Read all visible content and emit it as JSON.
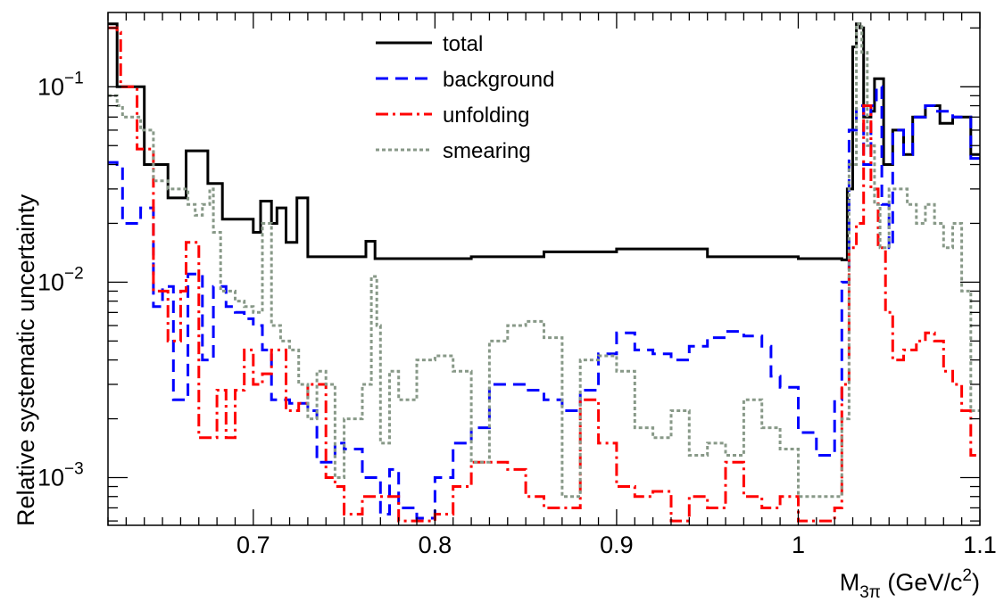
{
  "chart_data": {
    "type": "line",
    "style": "step histogram",
    "xlabel": "M_3π (GeV/c^2)",
    "xlabel_parts": {
      "main": "M",
      "sub": "3π",
      "unit_pre": " (GeV/c",
      "sup": "2",
      "unit_post": ")"
    },
    "ylabel": "Relative systematic uncertainty",
    "xlim": [
      0.62,
      1.1
    ],
    "ylim": [
      0.00057,
      0.24
    ],
    "yscale": "log",
    "grid": false,
    "legend_position": "top-center",
    "x_tick_labels": [
      {
        "value": 0.7,
        "label": "0.7"
      },
      {
        "value": 0.8,
        "label": "0.8"
      },
      {
        "value": 0.9,
        "label": "0.9"
      },
      {
        "value": 1.0,
        "label": "1"
      },
      {
        "value": 1.1,
        "label": "1.1"
      }
    ],
    "y_tick_labels": [
      {
        "value": 0.001,
        "base": "10",
        "exp": "−3"
      },
      {
        "value": 0.01,
        "base": "10",
        "exp": "−2"
      },
      {
        "value": 0.1,
        "base": "10",
        "exp": "−1"
      }
    ],
    "series": [
      {
        "name": "total",
        "color": "#000000",
        "dash": "",
        "points": [
          [
            0.62,
            0.21
          ],
          [
            0.625,
            0.1
          ],
          [
            0.632,
            0.1
          ],
          [
            0.64,
            0.04
          ],
          [
            0.648,
            0.04
          ],
          [
            0.653,
            0.027
          ],
          [
            0.66,
            0.027
          ],
          [
            0.663,
            0.047
          ],
          [
            0.672,
            0.047
          ],
          [
            0.675,
            0.032
          ],
          [
            0.68,
            0.032
          ],
          [
            0.683,
            0.021
          ],
          [
            0.695,
            0.021
          ],
          [
            0.7,
            0.018
          ],
          [
            0.704,
            0.026
          ],
          [
            0.708,
            0.026
          ],
          [
            0.71,
            0.02
          ],
          [
            0.713,
            0.024
          ],
          [
            0.716,
            0.024
          ],
          [
            0.718,
            0.016
          ],
          [
            0.722,
            0.016
          ],
          [
            0.724,
            0.027
          ],
          [
            0.728,
            0.027
          ],
          [
            0.73,
            0.0135
          ],
          [
            0.76,
            0.0135
          ],
          [
            0.762,
            0.0162
          ],
          [
            0.765,
            0.0162
          ],
          [
            0.767,
            0.0132
          ],
          [
            0.82,
            0.0135
          ],
          [
            0.86,
            0.0143
          ],
          [
            0.9,
            0.0148
          ],
          [
            0.95,
            0.0135
          ],
          [
            1.0,
            0.0132
          ],
          [
            1.024,
            0.013
          ],
          [
            1.027,
            0.03
          ],
          [
            1.03,
            0.16
          ],
          [
            1.032,
            0.21
          ],
          [
            1.034,
            0.2
          ],
          [
            1.036,
            0.07
          ],
          [
            1.04,
            0.075
          ],
          [
            1.042,
            0.11
          ],
          [
            1.045,
            0.11
          ],
          [
            1.047,
            0.04
          ],
          [
            1.05,
            0.04
          ],
          [
            1.052,
            0.06
          ],
          [
            1.055,
            0.06
          ],
          [
            1.058,
            0.045
          ],
          [
            1.062,
            0.045
          ],
          [
            1.063,
            0.07
          ],
          [
            1.07,
            0.08
          ],
          [
            1.075,
            0.08
          ],
          [
            1.078,
            0.065
          ],
          [
            1.085,
            0.07
          ],
          [
            1.092,
            0.07
          ],
          [
            1.095,
            0.045
          ],
          [
            1.1,
            0.045
          ]
        ]
      },
      {
        "name": "background",
        "color": "#0000ff",
        "dash": "14,8",
        "points": [
          [
            0.62,
            0.041
          ],
          [
            0.625,
            0.04
          ],
          [
            0.628,
            0.02
          ],
          [
            0.635,
            0.02
          ],
          [
            0.638,
            0.024
          ],
          [
            0.642,
            0.024
          ],
          [
            0.645,
            0.0075
          ],
          [
            0.65,
            0.0095
          ],
          [
            0.653,
            0.0095
          ],
          [
            0.656,
            0.0025
          ],
          [
            0.66,
            0.0025
          ],
          [
            0.664,
            0.011
          ],
          [
            0.668,
            0.011
          ],
          [
            0.672,
            0.004
          ],
          [
            0.678,
            0.0095
          ],
          [
            0.685,
            0.0075
          ],
          [
            0.69,
            0.007
          ],
          [
            0.695,
            0.0065
          ],
          [
            0.7,
            0.006
          ],
          [
            0.705,
            0.0045
          ],
          [
            0.71,
            0.0025
          ],
          [
            0.715,
            0.0025
          ],
          [
            0.72,
            0.0024
          ],
          [
            0.725,
            0.0024
          ],
          [
            0.73,
            0.0022
          ],
          [
            0.735,
            0.0012
          ],
          [
            0.74,
            0.0012
          ],
          [
            0.745,
            0.0015
          ],
          [
            0.75,
            0.0014
          ],
          [
            0.76,
            0.001
          ],
          [
            0.77,
            0.00065
          ],
          [
            0.775,
            0.0011
          ],
          [
            0.78,
            0.0007
          ],
          [
            0.79,
            0.00062
          ],
          [
            0.8,
            0.001
          ],
          [
            0.81,
            0.0015
          ],
          [
            0.82,
            0.0018
          ],
          [
            0.83,
            0.003
          ],
          [
            0.84,
            0.003
          ],
          [
            0.85,
            0.0028
          ],
          [
            0.86,
            0.0025
          ],
          [
            0.87,
            0.0022
          ],
          [
            0.88,
            0.0028
          ],
          [
            0.89,
            0.0043
          ],
          [
            0.9,
            0.0055
          ],
          [
            0.905,
            0.0055
          ],
          [
            0.91,
            0.0045
          ],
          [
            0.92,
            0.0043
          ],
          [
            0.93,
            0.004
          ],
          [
            0.94,
            0.0047
          ],
          [
            0.95,
            0.0052
          ],
          [
            0.96,
            0.0056
          ],
          [
            0.97,
            0.0053
          ],
          [
            0.98,
            0.0047
          ],
          [
            0.985,
            0.0033
          ],
          [
            0.99,
            0.0029
          ],
          [
            1.0,
            0.0017
          ],
          [
            1.01,
            0.0013
          ],
          [
            1.02,
            0.0025
          ],
          [
            1.024,
            0.01
          ],
          [
            1.028,
            0.06
          ],
          [
            1.032,
            0.08
          ],
          [
            1.036,
            0.04
          ],
          [
            1.04,
            0.08
          ],
          [
            1.043,
            0.1
          ],
          [
            1.046,
            0.025
          ],
          [
            1.05,
            0.015
          ],
          [
            1.052,
            0.06
          ],
          [
            1.058,
            0.045
          ],
          [
            1.063,
            0.07
          ],
          [
            1.07,
            0.08
          ],
          [
            1.075,
            0.075
          ],
          [
            1.085,
            0.07
          ],
          [
            1.095,
            0.043
          ],
          [
            1.1,
            0.043
          ]
        ]
      },
      {
        "name": "unfolding",
        "color": "#ff0000",
        "dash": "14,5,3,5",
        "points": [
          [
            0.62,
            0.2
          ],
          [
            0.625,
            0.19
          ],
          [
            0.627,
            0.1
          ],
          [
            0.632,
            0.1
          ],
          [
            0.636,
            0.048
          ],
          [
            0.642,
            0.048
          ],
          [
            0.645,
            0.009
          ],
          [
            0.65,
            0.009
          ],
          [
            0.653,
            0.005
          ],
          [
            0.658,
            0.005
          ],
          [
            0.66,
            0.009
          ],
          [
            0.663,
            0.016
          ],
          [
            0.667,
            0.016
          ],
          [
            0.67,
            0.0016
          ],
          [
            0.675,
            0.0016
          ],
          [
            0.68,
            0.0028
          ],
          [
            0.685,
            0.0016
          ],
          [
            0.69,
            0.0028
          ],
          [
            0.695,
            0.0045
          ],
          [
            0.7,
            0.003
          ],
          [
            0.705,
            0.0034
          ],
          [
            0.71,
            0.0045
          ],
          [
            0.715,
            0.0045
          ],
          [
            0.718,
            0.0022
          ],
          [
            0.725,
            0.0024
          ],
          [
            0.73,
            0.003
          ],
          [
            0.735,
            0.003
          ],
          [
            0.74,
            0.001
          ],
          [
            0.745,
            0.0009
          ],
          [
            0.75,
            0.00065
          ],
          [
            0.76,
            0.0008
          ],
          [
            0.77,
            0.0008
          ],
          [
            0.78,
            0.0006
          ],
          [
            0.79,
            0.0006
          ],
          [
            0.8,
            0.00065
          ],
          [
            0.81,
            0.0009
          ],
          [
            0.82,
            0.0012
          ],
          [
            0.83,
            0.0012
          ],
          [
            0.84,
            0.0011
          ],
          [
            0.85,
            0.0008
          ],
          [
            0.86,
            0.0007
          ],
          [
            0.87,
            0.0007
          ],
          [
            0.88,
            0.0025
          ],
          [
            0.89,
            0.0015
          ],
          [
            0.9,
            0.0009
          ],
          [
            0.91,
            0.0008
          ],
          [
            0.92,
            0.00085
          ],
          [
            0.93,
            0.0006
          ],
          [
            0.94,
            0.0008
          ],
          [
            0.95,
            0.0007
          ],
          [
            0.96,
            0.0012
          ],
          [
            0.97,
            0.0008
          ],
          [
            0.98,
            0.0007
          ],
          [
            0.99,
            0.0008
          ],
          [
            1.0,
            0.0006
          ],
          [
            1.01,
            0.0006
          ],
          [
            1.02,
            0.0007
          ],
          [
            1.024,
            0.003
          ],
          [
            1.028,
            0.015
          ],
          [
            1.032,
            0.02
          ],
          [
            1.036,
            0.08
          ],
          [
            1.04,
            0.03
          ],
          [
            1.044,
            0.015
          ],
          [
            1.048,
            0.007
          ],
          [
            1.052,
            0.004
          ],
          [
            1.058,
            0.0045
          ],
          [
            1.065,
            0.005
          ],
          [
            1.07,
            0.0055
          ],
          [
            1.075,
            0.005
          ],
          [
            1.08,
            0.0035
          ],
          [
            1.085,
            0.003
          ],
          [
            1.09,
            0.0022
          ],
          [
            1.095,
            0.0013
          ],
          [
            1.1,
            0.0013
          ]
        ]
      },
      {
        "name": "smearing",
        "color": "#889988",
        "dash": "4,3",
        "points": [
          [
            0.62,
            0.09
          ],
          [
            0.625,
            0.08
          ],
          [
            0.628,
            0.07
          ],
          [
            0.635,
            0.07
          ],
          [
            0.638,
            0.06
          ],
          [
            0.642,
            0.06
          ],
          [
            0.645,
            0.033
          ],
          [
            0.65,
            0.033
          ],
          [
            0.653,
            0.03
          ],
          [
            0.66,
            0.03
          ],
          [
            0.664,
            0.025
          ],
          [
            0.668,
            0.022
          ],
          [
            0.672,
            0.025
          ],
          [
            0.676,
            0.03
          ],
          [
            0.678,
            0.018
          ],
          [
            0.682,
            0.009
          ],
          [
            0.69,
            0.008
          ],
          [
            0.695,
            0.0075
          ],
          [
            0.7,
            0.007
          ],
          [
            0.705,
            0.02
          ],
          [
            0.71,
            0.006
          ],
          [
            0.715,
            0.005
          ],
          [
            0.72,
            0.0045
          ],
          [
            0.725,
            0.003
          ],
          [
            0.73,
            0.002
          ],
          [
            0.735,
            0.0035
          ],
          [
            0.74,
            0.003
          ],
          [
            0.745,
            0.001
          ],
          [
            0.75,
            0.002
          ],
          [
            0.755,
            0.002
          ],
          [
            0.76,
            0.003
          ],
          [
            0.765,
            0.0107
          ],
          [
            0.768,
            0.006
          ],
          [
            0.77,
            0.0015
          ],
          [
            0.775,
            0.0035
          ],
          [
            0.78,
            0.0025
          ],
          [
            0.79,
            0.004
          ],
          [
            0.8,
            0.0042
          ],
          [
            0.81,
            0.0035
          ],
          [
            0.82,
            0.0012
          ],
          [
            0.83,
            0.005
          ],
          [
            0.84,
            0.006
          ],
          [
            0.85,
            0.0063
          ],
          [
            0.86,
            0.0052
          ],
          [
            0.87,
            0.0008
          ],
          [
            0.88,
            0.004
          ],
          [
            0.89,
            0.0042
          ],
          [
            0.9,
            0.0035
          ],
          [
            0.91,
            0.0018
          ],
          [
            0.92,
            0.0016
          ],
          [
            0.93,
            0.0022
          ],
          [
            0.94,
            0.0013
          ],
          [
            0.95,
            0.0015
          ],
          [
            0.96,
            0.0013
          ],
          [
            0.97,
            0.0025
          ],
          [
            0.98,
            0.0018
          ],
          [
            0.99,
            0.0014
          ],
          [
            1.0,
            0.0008
          ],
          [
            1.01,
            0.0008
          ],
          [
            1.02,
            0.0008
          ],
          [
            1.024,
            0.002
          ],
          [
            1.028,
            0.04
          ],
          [
            1.032,
            0.21
          ],
          [
            1.035,
            0.15
          ],
          [
            1.038,
            0.05
          ],
          [
            1.042,
            0.025
          ],
          [
            1.045,
            0.015
          ],
          [
            1.05,
            0.03
          ],
          [
            1.055,
            0.03
          ],
          [
            1.06,
            0.025
          ],
          [
            1.065,
            0.02
          ],
          [
            1.07,
            0.025
          ],
          [
            1.075,
            0.02
          ],
          [
            1.08,
            0.015
          ],
          [
            1.085,
            0.02
          ],
          [
            1.09,
            0.009
          ],
          [
            1.095,
            0.0022
          ],
          [
            1.1,
            0.0022
          ]
        ]
      }
    ]
  }
}
